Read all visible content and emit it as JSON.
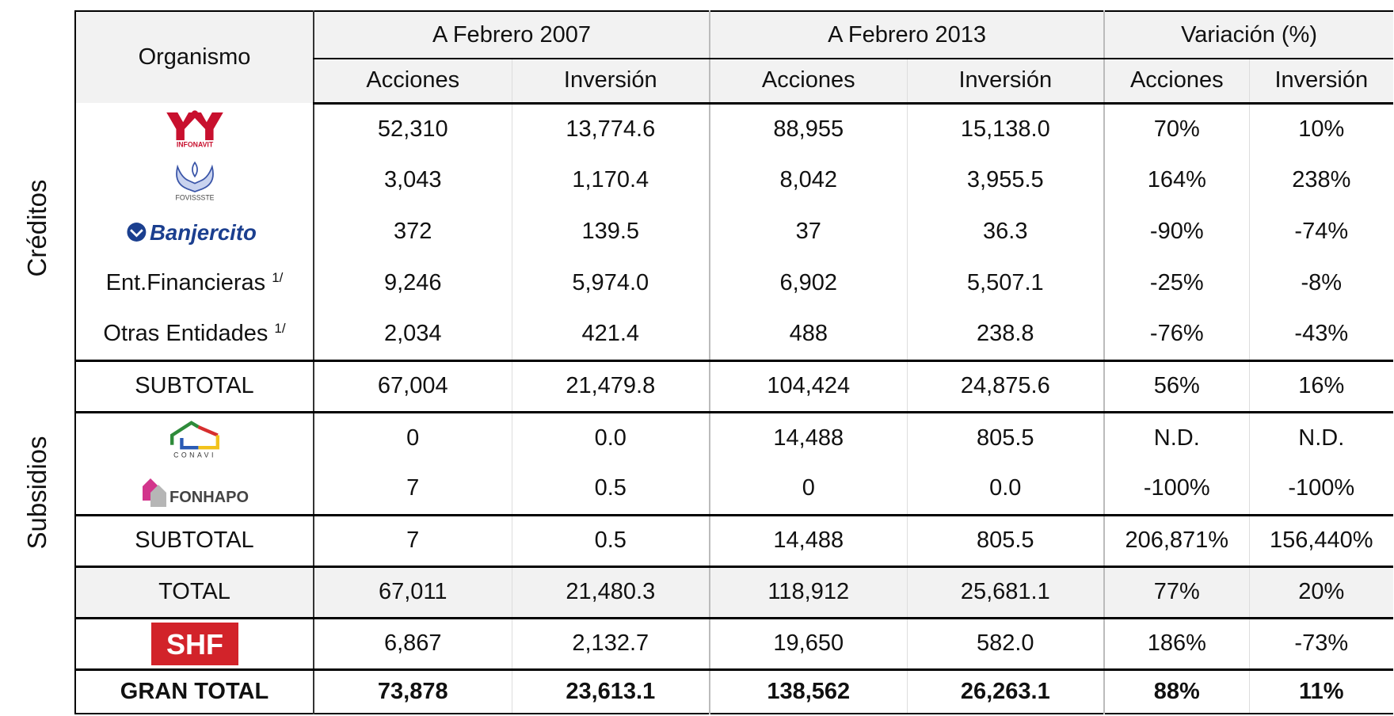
{
  "side_labels": [
    "Créditos",
    "Subsidios"
  ],
  "header": {
    "organismo": "Organismo",
    "groups": [
      "A Febrero 2007",
      "A Febrero 2013",
      "Variación (%)"
    ],
    "subheaders": [
      "Acciones",
      "Inversión",
      "Acciones",
      "Inversión",
      "Acciones",
      "Inversión"
    ]
  },
  "sections": [
    {
      "rows": [
        {
          "logo": "INFONAVIT",
          "cells": [
            "52,310",
            "13,774.6",
            "88,955",
            "15,138.0",
            "70%",
            "10%"
          ]
        },
        {
          "logo": "FOVISSSTE",
          "cells": [
            "3,043",
            "1,170.4",
            "8,042",
            "3,955.5",
            "164%",
            "238%"
          ]
        },
        {
          "logo": "Banjercito",
          "cells": [
            "372",
            "139.5",
            "37",
            "36.3",
            "-90%",
            "-74%"
          ]
        },
        {
          "label": "Ent.Financieras",
          "note": "1/",
          "cells": [
            "9,246",
            "5,974.0",
            "6,902",
            "5,507.1",
            "-25%",
            "-8%"
          ]
        },
        {
          "label": "Otras Entidades",
          "note": "1/",
          "cells": [
            "2,034",
            "421.4",
            "488",
            "238.8",
            "-76%",
            "-43%"
          ]
        }
      ]
    },
    {
      "rows": [
        {
          "label": "SUBTOTAL",
          "cells": [
            "67,004",
            "21,479.8",
            "104,424",
            "24,875.6",
            "56%",
            "16%"
          ]
        }
      ]
    },
    {
      "rows": [
        {
          "logo": "CONAVI",
          "cells": [
            "0",
            "0.0",
            "14,488",
            "805.5",
            "N.D.",
            "N.D."
          ]
        },
        {
          "logo": "FONHAPO",
          "cells": [
            "7",
            "0.5",
            "0",
            "0.0",
            "-100%",
            "-100%"
          ]
        }
      ]
    },
    {
      "rows": [
        {
          "label": "SUBTOTAL",
          "cells": [
            "7",
            "0.5",
            "14,488",
            "805.5",
            "206,871%",
            "156,440%"
          ]
        }
      ]
    },
    {
      "shaded": true,
      "rows": [
        {
          "label": "TOTAL",
          "cells": [
            "67,011",
            "21,480.3",
            "118,912",
            "25,681.1",
            "77%",
            "20%"
          ]
        }
      ]
    },
    {
      "rows": [
        {
          "logo": "SHF",
          "cells": [
            "6,867",
            "2,132.7",
            "19,650",
            "582.0",
            "186%",
            "-73%"
          ]
        }
      ]
    },
    {
      "bold": true,
      "rows": [
        {
          "label": "GRAN TOTAL",
          "cells": [
            "73,878",
            "23,613.1",
            "138,562",
            "26,263.1",
            "88%",
            "11%"
          ]
        }
      ]
    }
  ]
}
